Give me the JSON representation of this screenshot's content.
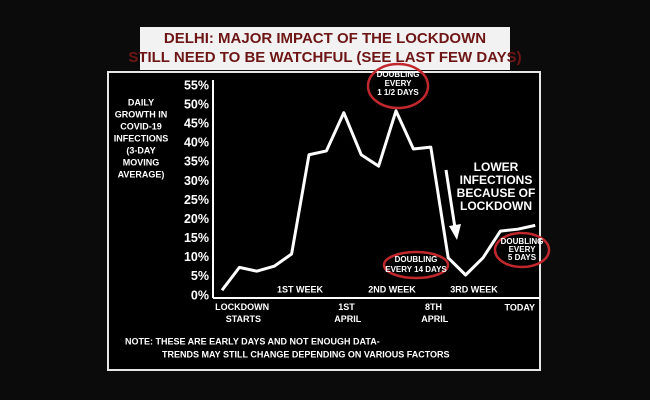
{
  "chart_data": {
    "type": "line",
    "title": [
      "DELHI: MAJOR IMPACT OF THE LOCKDOWN",
      "STILL NEED TO BE WATCHFUL (SEE LAST FEW DAYS)"
    ],
    "y_label": [
      "DAILY",
      "GROWTH IN",
      "COVID-19",
      "INFECTIONS",
      "(3-DAY",
      "MOVING",
      "AVERAGE)"
    ],
    "categories": [
      null,
      "LOCKDOWN STARTS",
      null,
      null,
      null,
      null,
      null,
      "1ST APRIL",
      null,
      null,
      null,
      null,
      "8TH APRIL",
      null,
      null,
      null,
      null,
      "TODAY",
      null
    ],
    "series": [
      {
        "name": "Daily growth",
        "color": "#ffffff",
        "values": [
          1.5,
          7.5,
          6.5,
          7.8,
          11,
          37,
          38,
          48,
          37,
          34,
          48.5,
          38.5,
          39,
          10,
          5.5,
          10,
          17,
          17.5,
          18.5
        ]
      }
    ],
    "ylim": [
      0,
      55
    ],
    "yticks": [
      {
        "value": 0,
        "label": "0%"
      },
      {
        "value": 5,
        "label": "5%"
      },
      {
        "value": 10,
        "label": "10%"
      },
      {
        "value": 15,
        "label": "15%"
      },
      {
        "value": 20,
        "label": "20%"
      },
      {
        "value": 25,
        "label": "25%"
      },
      {
        "value": 30,
        "label": "30%"
      },
      {
        "value": 35,
        "label": "35%"
      },
      {
        "value": 40,
        "label": "40%"
      },
      {
        "value": 45,
        "label": "45%"
      },
      {
        "value": 50,
        "label": "50%"
      },
      {
        "value": 55,
        "label": "55%"
      }
    ],
    "week_labels": [
      "1ST WEEK",
      "2ND WEEK",
      "3RD WEEK"
    ],
    "annotations": [
      {
        "lines": [
          "DOUBLING",
          "EVERY",
          "1 1/2 DAYS"
        ]
      },
      {
        "lines": [
          "DOUBLING",
          "EVERY 14 DAYS"
        ]
      },
      {
        "lines": [
          "DOUBLING",
          "EVERY",
          "5 DAYS"
        ]
      },
      {
        "lines": [
          "LOWER",
          "INFECTIONS",
          "BECAUSE OF",
          "LOCKDOWN"
        ]
      }
    ],
    "note": [
      "NOTE: THESE ARE EARLY DAYS AND NOT ENOUGH DATA-",
      "TRENDS MAY STILL CHANGE DEPENDING ON VARIOUS FACTORS"
    ]
  }
}
